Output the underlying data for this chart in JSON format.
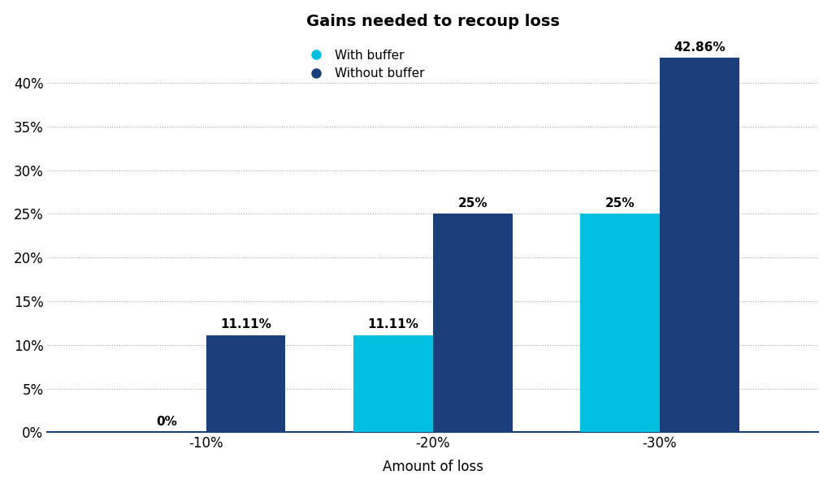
{
  "title": "Gains needed to recoup loss",
  "xlabel": "Amount of loss",
  "categories": [
    "-10%",
    "-20%",
    "-30%"
  ],
  "with_buffer": [
    0.0,
    11.11,
    25.0
  ],
  "without_buffer": [
    11.11,
    25.0,
    42.86
  ],
  "with_buffer_labels": [
    "0%",
    "11.11%",
    "25%"
  ],
  "without_buffer_labels": [
    "11.11%",
    "25%",
    "42.86%"
  ],
  "color_with_buffer": "#00BFDF",
  "color_without_buffer": "#1B3F7A",
  "ylim": [
    0,
    45
  ],
  "yticks": [
    0,
    5,
    10,
    15,
    20,
    25,
    30,
    35,
    40
  ],
  "legend_labels": [
    "With buffer",
    "Without buffer"
  ],
  "background_color": "#FFFFFF",
  "bar_width": 0.35
}
